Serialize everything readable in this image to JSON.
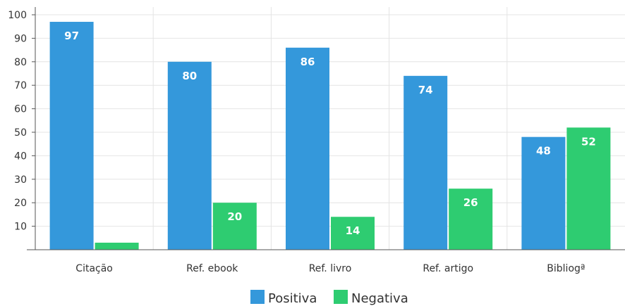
{
  "chart_data": {
    "type": "bar",
    "categories": [
      "Citação",
      "Ref. ebook",
      "Ref. livro",
      "Ref. artigo",
      "Bibliogª"
    ],
    "series": [
      {
        "name": "Positiva",
        "color": "#3498db",
        "values": [
          97,
          80,
          86,
          74,
          48
        ],
        "labels": [
          "97",
          "80",
          "86",
          "74",
          "48"
        ]
      },
      {
        "name": "Negativa",
        "color": "#2ecc71",
        "values": [
          3,
          20,
          14,
          26,
          52
        ],
        "labels": [
          "",
          "20",
          "14",
          "26",
          "52"
        ]
      }
    ],
    "title": "",
    "xlabel": "",
    "ylabel": "",
    "ylim": [
      0,
      100
    ],
    "yticks": [
      10,
      20,
      30,
      40,
      50,
      60,
      70,
      80,
      90,
      100
    ],
    "grid": true,
    "legend": "bottom-center",
    "colors": {
      "grid": "#e4e4e4",
      "axis": "#555555"
    }
  }
}
